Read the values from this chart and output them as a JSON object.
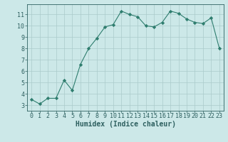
{
  "x": [
    0,
    1,
    2,
    3,
    4,
    5,
    6,
    7,
    8,
    9,
    10,
    11,
    12,
    13,
    14,
    15,
    16,
    17,
    18,
    19,
    20,
    21,
    22,
    23
  ],
  "y": [
    3.5,
    3.1,
    3.6,
    3.6,
    5.2,
    4.3,
    6.6,
    8.0,
    8.9,
    9.9,
    10.1,
    11.3,
    11.0,
    10.8,
    10.0,
    9.9,
    10.3,
    11.3,
    11.1,
    10.6,
    10.3,
    10.2,
    10.7,
    8.0
  ],
  "line_color": "#2e7d6e",
  "marker": "D",
  "marker_size": 2.2,
  "bg_color": "#cce8e8",
  "grid_color": "#aacaca",
  "xlabel": "Humidex (Indice chaleur)",
  "xlim": [
    -0.5,
    23.5
  ],
  "ylim": [
    2.5,
    11.9
  ],
  "yticks": [
    3,
    4,
    5,
    6,
    7,
    8,
    9,
    10,
    11
  ],
  "xticks": [
    0,
    1,
    2,
    3,
    4,
    5,
    6,
    7,
    8,
    9,
    10,
    11,
    12,
    13,
    14,
    15,
    16,
    17,
    18,
    19,
    20,
    21,
    22,
    23
  ],
  "axis_color": "#2e6060",
  "label_fontsize": 7,
  "tick_fontsize": 6,
  "linewidth": 0.8
}
